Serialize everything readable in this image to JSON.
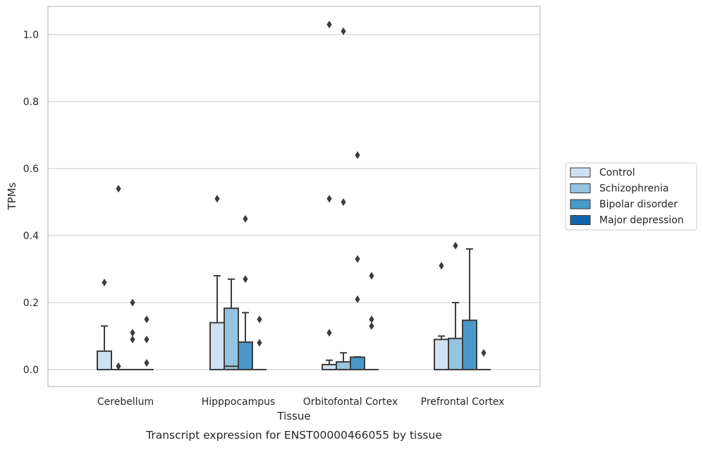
{
  "caption": "Transcript expression for ENST00000466055 by tissue",
  "chart_data": {
    "type": "boxplot",
    "title": "",
    "xlabel": "Tissue",
    "ylabel": "TPMs",
    "ylim": [
      -0.05,
      1.08
    ],
    "yticks": [
      0.0,
      0.2,
      0.4,
      0.6,
      0.8,
      1.0
    ],
    "ytick_labels": [
      "0.0",
      "0.2",
      "0.4",
      "0.6",
      "0.8",
      "1.0"
    ],
    "grid": "horizontal",
    "legend_placement": "right",
    "categories": [
      "Cerebellum",
      "Hipppocampus",
      "Orbitofontal Cortex",
      "Prefrontal Cortex"
    ],
    "series": [
      {
        "name": "Control",
        "color": "#d0e1f2",
        "boxes": [
          {
            "q1": 0.0,
            "median": 0.0,
            "q3": 0.055,
            "whisker_low": 0.0,
            "whisker_high": 0.13,
            "outliers": [
              0.26
            ]
          },
          {
            "q1": 0.0,
            "median": 0.0,
            "q3": 0.14,
            "whisker_low": 0.0,
            "whisker_high": 0.28,
            "outliers": [
              0.51
            ]
          },
          {
            "q1": 0.0,
            "median": 0.0,
            "q3": 0.015,
            "whisker_low": 0.0,
            "whisker_high": 0.028,
            "outliers": [
              0.11,
              0.51,
              1.03
            ]
          },
          {
            "q1": 0.0,
            "median": 0.0,
            "q3": 0.09,
            "whisker_low": 0.0,
            "whisker_high": 0.1,
            "outliers": [
              0.31
            ]
          }
        ]
      },
      {
        "name": "Schizophrenia",
        "color": "#94c4df",
        "boxes": [
          {
            "q1": 0.0,
            "median": 0.0,
            "q3": 0.0,
            "whisker_low": 0.0,
            "whisker_high": 0.0,
            "outliers": [
              0.01,
              0.54
            ]
          },
          {
            "q1": 0.0,
            "median": 0.01,
            "q3": 0.183,
            "whisker_low": 0.0,
            "whisker_high": 0.27,
            "outliers": []
          },
          {
            "q1": 0.0,
            "median": 0.0,
            "q3": 0.023,
            "whisker_low": 0.0,
            "whisker_high": 0.05,
            "outliers": [
              0.5,
              1.01
            ]
          },
          {
            "q1": 0.0,
            "median": 0.0,
            "q3": 0.093,
            "whisker_low": 0.0,
            "whisker_high": 0.2,
            "outliers": [
              0.37
            ]
          }
        ]
      },
      {
        "name": "Bipolar disorder",
        "color": "#4a98c9",
        "boxes": [
          {
            "q1": 0.0,
            "median": 0.0,
            "q3": 0.0,
            "whisker_low": 0.0,
            "whisker_high": 0.0,
            "outliers": [
              0.09,
              0.11,
              0.2
            ]
          },
          {
            "q1": 0.0,
            "median": 0.0,
            "q3": 0.082,
            "whisker_low": 0.0,
            "whisker_high": 0.17,
            "outliers": [
              0.27,
              0.45
            ]
          },
          {
            "q1": 0.0,
            "median": 0.0,
            "q3": 0.037,
            "whisker_low": 0.0,
            "whisker_high": 0.038,
            "outliers": [
              0.21,
              0.33,
              0.64
            ]
          },
          {
            "q1": 0.0,
            "median": 0.0,
            "q3": 0.147,
            "whisker_low": 0.0,
            "whisker_high": 0.36,
            "outliers": []
          }
        ]
      },
      {
        "name": "Major depression",
        "color": "#1764ab",
        "boxes": [
          {
            "q1": 0.0,
            "median": 0.0,
            "q3": 0.0,
            "whisker_low": 0.0,
            "whisker_high": 0.0,
            "outliers": [
              0.02,
              0.09,
              0.15
            ]
          },
          {
            "q1": 0.0,
            "median": 0.0,
            "q3": 0.0,
            "whisker_low": 0.0,
            "whisker_high": 0.0,
            "outliers": [
              0.08,
              0.15
            ]
          },
          {
            "q1": 0.0,
            "median": 0.0,
            "q3": 0.0,
            "whisker_low": 0.0,
            "whisker_high": 0.0,
            "outliers": [
              0.13,
              0.15,
              0.28
            ]
          },
          {
            "q1": 0.0,
            "median": 0.0,
            "q3": 0.0,
            "whisker_low": 0.0,
            "whisker_high": 0.0,
            "outliers": [
              0.05
            ]
          }
        ]
      }
    ]
  }
}
